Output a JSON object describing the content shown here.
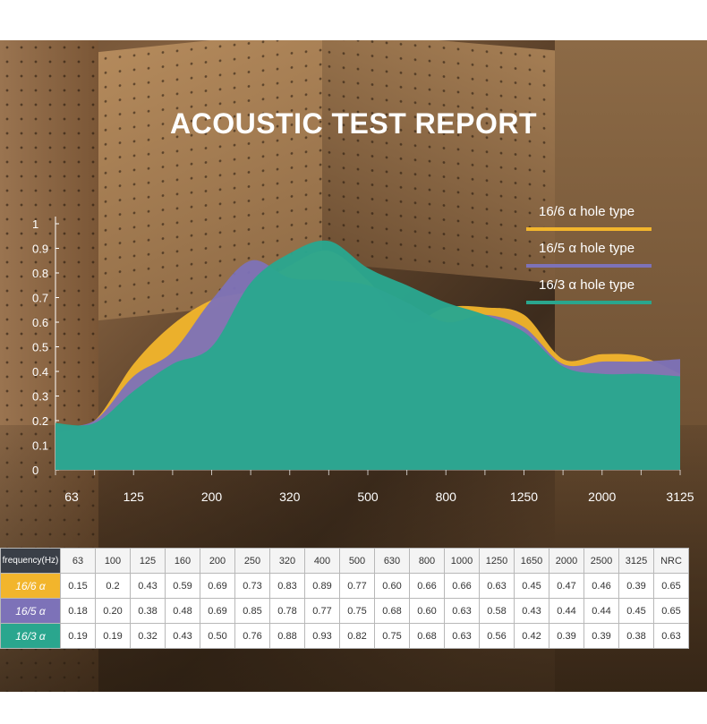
{
  "title": "ACOUSTIC TEST REPORT",
  "chart_data": {
    "type": "area",
    "title": "ACOUSTIC TEST REPORT",
    "y_ticks": [
      "1",
      "0.9",
      "0.8",
      "0.7",
      "0.6",
      "0.5",
      "0.4",
      "0.3",
      "0.2",
      "0.1",
      "0"
    ],
    "x_tick_labels": [
      "63",
      "125",
      "200",
      "320",
      "500",
      "800",
      "1250",
      "2000",
      "3125"
    ],
    "ylim": [
      0,
      1
    ],
    "legend_position": "top-right",
    "categories": [
      "63",
      "100",
      "125",
      "160",
      "200",
      "250",
      "320",
      "400",
      "500",
      "630",
      "800",
      "1000",
      "1250",
      "1650",
      "2000",
      "2500",
      "3125"
    ],
    "series": [
      {
        "name": "16/6",
        "label": "16/6 α  hole type",
        "color": "#f2b52c",
        "values": [
          0.15,
          0.2,
          0.43,
          0.59,
          0.69,
          0.73,
          0.83,
          0.89,
          0.77,
          0.6,
          0.66,
          0.66,
          0.63,
          0.45,
          0.47,
          0.46,
          0.39
        ],
        "nrc": "0.65"
      },
      {
        "name": "16/5",
        "label": "16/5 α  hole type",
        "color": "#7d72b8",
        "values": [
          0.18,
          0.2,
          0.38,
          0.48,
          0.69,
          0.85,
          0.78,
          0.77,
          0.75,
          0.68,
          0.6,
          0.63,
          0.58,
          0.43,
          0.44,
          0.44,
          0.45
        ],
        "nrc": "0.65"
      },
      {
        "name": "16/3",
        "label": "16/3 α  hole type",
        "color": "#2aa68e",
        "values": [
          0.19,
          0.19,
          0.32,
          0.43,
          0.5,
          0.76,
          0.88,
          0.93,
          0.82,
          0.75,
          0.68,
          0.63,
          0.56,
          0.42,
          0.39,
          0.39,
          0.38
        ],
        "nrc": "0.63"
      }
    ]
  },
  "table": {
    "header_label": "frequency(Hz)",
    "columns": [
      "63",
      "100",
      "125",
      "160",
      "200",
      "250",
      "320",
      "400",
      "500",
      "630",
      "800",
      "1000",
      "1250",
      "1650",
      "2000",
      "2500",
      "3125",
      "NRC"
    ],
    "rows": [
      {
        "label": "16/6 α",
        "color": "#f2b52c",
        "cells": [
          "0.15",
          "0.2",
          "0.43",
          "0.59",
          "0.69",
          "0.73",
          "0.83",
          "0.89",
          "0.77",
          "0.60",
          "0.66",
          "0.66",
          "0.63",
          "0.45",
          "0.47",
          "0.46",
          "0.39",
          "0.65"
        ]
      },
      {
        "label": "16/5 α",
        "color": "#7d72b8",
        "cells": [
          "0.18",
          "0.20",
          "0.38",
          "0.48",
          "0.69",
          "0.85",
          "0.78",
          "0.77",
          "0.75",
          "0.68",
          "0.60",
          "0.63",
          "0.58",
          "0.43",
          "0.44",
          "0.44",
          "0.45",
          "0.65"
        ]
      },
      {
        "label": "16/3 α",
        "color": "#2aa68e",
        "cells": [
          "0.19",
          "0.19",
          "0.32",
          "0.43",
          "0.50",
          "0.76",
          "0.88",
          "0.93",
          "0.82",
          "0.75",
          "0.68",
          "0.63",
          "0.56",
          "0.42",
          "0.39",
          "0.39",
          "0.38",
          "0.63"
        ]
      }
    ]
  }
}
